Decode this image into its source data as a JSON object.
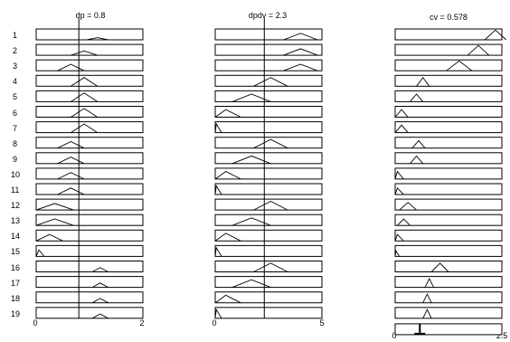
{
  "titles": {
    "dp": "dp = 0.8",
    "dpdv": "dpdv = 2.3",
    "cv": "cv = 0.578"
  },
  "rule_labels": [
    "1",
    "2",
    "3",
    "4",
    "5",
    "6",
    "7",
    "8",
    "9",
    "10",
    "11",
    "12",
    "13",
    "14",
    "15",
    "16",
    "17",
    "18",
    "19"
  ],
  "axis_ticks": {
    "dp_min": "0",
    "dp_max": "2",
    "dpdv_min": "0",
    "dpdv_max": "5",
    "cv_min": "0",
    "cv_max": "2.5"
  },
  "inputs": {
    "dp": {
      "value": 0.8,
      "range": [
        0,
        2
      ]
    },
    "dpdv": {
      "value": 2.3,
      "range": [
        0,
        5
      ]
    },
    "cv": {
      "value": 0.578,
      "range": [
        0,
        2.5
      ]
    }
  },
  "rules": [
    {
      "dp": [
        0.95,
        1.15,
        1.35,
        0.2
      ],
      "dpdv": [
        3.2,
        4.0,
        4.8,
        0.6
      ],
      "cv": [
        2.1,
        2.35,
        2.6,
        0.9
      ]
    },
    {
      "dp": [
        0.65,
        0.9,
        1.15,
        0.4
      ],
      "dpdv": [
        3.2,
        4.0,
        4.8,
        0.6
      ],
      "cv": [
        1.7,
        1.95,
        2.2,
        0.9
      ]
    },
    {
      "dp": [
        0.4,
        0.65,
        0.9,
        0.6
      ],
      "dpdv": [
        3.2,
        4.0,
        4.8,
        0.6
      ],
      "cv": [
        1.2,
        1.5,
        1.8,
        0.9
      ]
    },
    {
      "dp": [
        0.65,
        0.9,
        1.15,
        0.8
      ],
      "dpdv": [
        1.8,
        2.6,
        3.4,
        0.8
      ],
      "cv": [
        0.5,
        0.65,
        0.8,
        0.8
      ]
    },
    {
      "dp": [
        0.65,
        0.9,
        1.15,
        0.8
      ],
      "dpdv": [
        0.8,
        1.7,
        2.6,
        0.7
      ],
      "cv": [
        0.35,
        0.5,
        0.65,
        0.7
      ]
    },
    {
      "dp": [
        0.65,
        0.9,
        1.15,
        0.8
      ],
      "dpdv": [
        0.0,
        0.5,
        1.2,
        0.7
      ],
      "cv": [
        0.0,
        0.15,
        0.3,
        0.7
      ]
    },
    {
      "dp": [
        0.65,
        0.9,
        1.15,
        0.8
      ],
      "dpdv": [
        0.0,
        0.05,
        0.3,
        0.8
      ],
      "cv": [
        0.0,
        0.15,
        0.3,
        0.7
      ]
    },
    {
      "dp": [
        0.4,
        0.65,
        0.9,
        0.6
      ],
      "dpdv": [
        1.8,
        2.6,
        3.4,
        0.8
      ],
      "cv": [
        0.4,
        0.55,
        0.7,
        0.7
      ]
    },
    {
      "dp": [
        0.4,
        0.65,
        0.9,
        0.6
      ],
      "dpdv": [
        0.8,
        1.7,
        2.6,
        0.7
      ],
      "cv": [
        0.35,
        0.5,
        0.65,
        0.7
      ]
    },
    {
      "dp": [
        0.4,
        0.65,
        0.9,
        0.6
      ],
      "dpdv": [
        0.0,
        0.5,
        1.2,
        0.7
      ],
      "cv": [
        0.0,
        0.05,
        0.2,
        0.7
      ]
    },
    {
      "dp": [
        0.4,
        0.65,
        0.9,
        0.6
      ],
      "dpdv": [
        0.0,
        0.05,
        0.3,
        0.8
      ],
      "cv": [
        0.0,
        0.05,
        0.2,
        0.6
      ]
    },
    {
      "dp": [
        0.0,
        0.35,
        0.7,
        0.6
      ],
      "dpdv": [
        1.8,
        2.6,
        3.4,
        0.8
      ],
      "cv": [
        0.1,
        0.3,
        0.5,
        0.7
      ]
    },
    {
      "dp": [
        0.0,
        0.35,
        0.7,
        0.6
      ],
      "dpdv": [
        0.8,
        1.7,
        2.6,
        0.7
      ],
      "cv": [
        0.05,
        0.2,
        0.35,
        0.6
      ]
    },
    {
      "dp": [
        0.0,
        0.25,
        0.5,
        0.6
      ],
      "dpdv": [
        0.0,
        0.5,
        1.2,
        0.7
      ],
      "cv": [
        0.0,
        0.05,
        0.2,
        0.6
      ]
    },
    {
      "dp": [
        0.0,
        0.05,
        0.15,
        0.6
      ],
      "dpdv": [
        0.0,
        0.05,
        0.3,
        0.8
      ],
      "cv": [
        0.0,
        0.02,
        0.1,
        0.5
      ]
    },
    {
      "dp": [
        1.05,
        1.2,
        1.35,
        0.4
      ],
      "dpdv": [
        1.8,
        2.6,
        3.4,
        0.8
      ],
      "cv": [
        0.85,
        1.05,
        1.25,
        0.8
      ]
    },
    {
      "dp": [
        1.05,
        1.2,
        1.35,
        0.4
      ],
      "dpdv": [
        0.8,
        1.7,
        2.6,
        0.7
      ],
      "cv": [
        0.7,
        0.8,
        0.9,
        0.8
      ]
    },
    {
      "dp": [
        1.05,
        1.2,
        1.35,
        0.4
      ],
      "dpdv": [
        0.0,
        0.5,
        1.2,
        0.7
      ],
      "cv": [
        0.65,
        0.75,
        0.85,
        0.8
      ]
    },
    {
      "dp": [
        1.05,
        1.2,
        1.35,
        0.4
      ],
      "dpdv": [
        0.0,
        0.05,
        0.3,
        0.8
      ],
      "cv": [
        0.65,
        0.75,
        0.85,
        0.8
      ]
    }
  ],
  "aggregate": [
    {
      "x": 0.578,
      "h": 1.0
    }
  ]
}
